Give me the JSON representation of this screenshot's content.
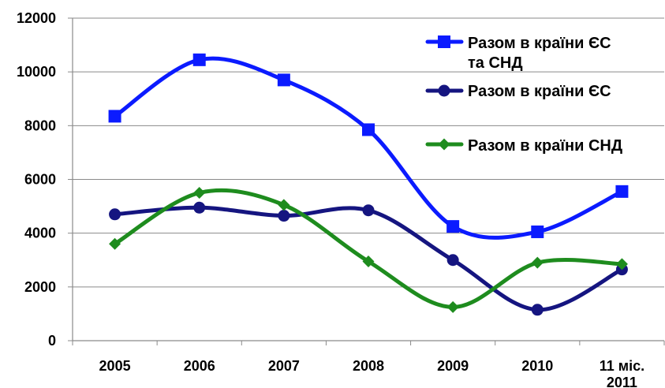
{
  "chart_data": {
    "type": "line",
    "categories": [
      "2005",
      "2006",
      "2007",
      "2008",
      "2009",
      "2010",
      "11 міс. 2011"
    ],
    "category_label_lines": [
      [
        "2005"
      ],
      [
        "2006"
      ],
      [
        "2007"
      ],
      [
        "2008"
      ],
      [
        "2009"
      ],
      [
        "2010"
      ],
      [
        "11 міс.",
        "2011"
      ]
    ],
    "ylim": [
      0,
      12000
    ],
    "yticks": [
      "0",
      "2000",
      "4000",
      "6000",
      "8000",
      "10000",
      "12000"
    ],
    "grid": true,
    "legend": {
      "placement": "top-right"
    },
    "series": [
      {
        "name": "Разом в країни ЄС та СНД",
        "legend_lines": [
          "Разом в країни ЄС",
          "та СНД"
        ],
        "color": "#0B1BFF",
        "marker": "square",
        "values": [
          8350,
          10450,
          9700,
          7850,
          4250,
          4050,
          5550
        ]
      },
      {
        "name": "Разом в країни ЄС",
        "legend_lines": [
          "Разом в країни ЄС"
        ],
        "color": "#151580",
        "marker": "circle",
        "values": [
          4700,
          4950,
          4650,
          4850,
          3000,
          1150,
          2650
        ]
      },
      {
        "name": "Разом в країни СНД",
        "legend_lines": [
          "Разом в країни СНД"
        ],
        "color": "#1E8C1E",
        "marker": "diamond",
        "values": [
          3600,
          5500,
          5050,
          2950,
          1250,
          2900,
          2850
        ]
      }
    ]
  }
}
